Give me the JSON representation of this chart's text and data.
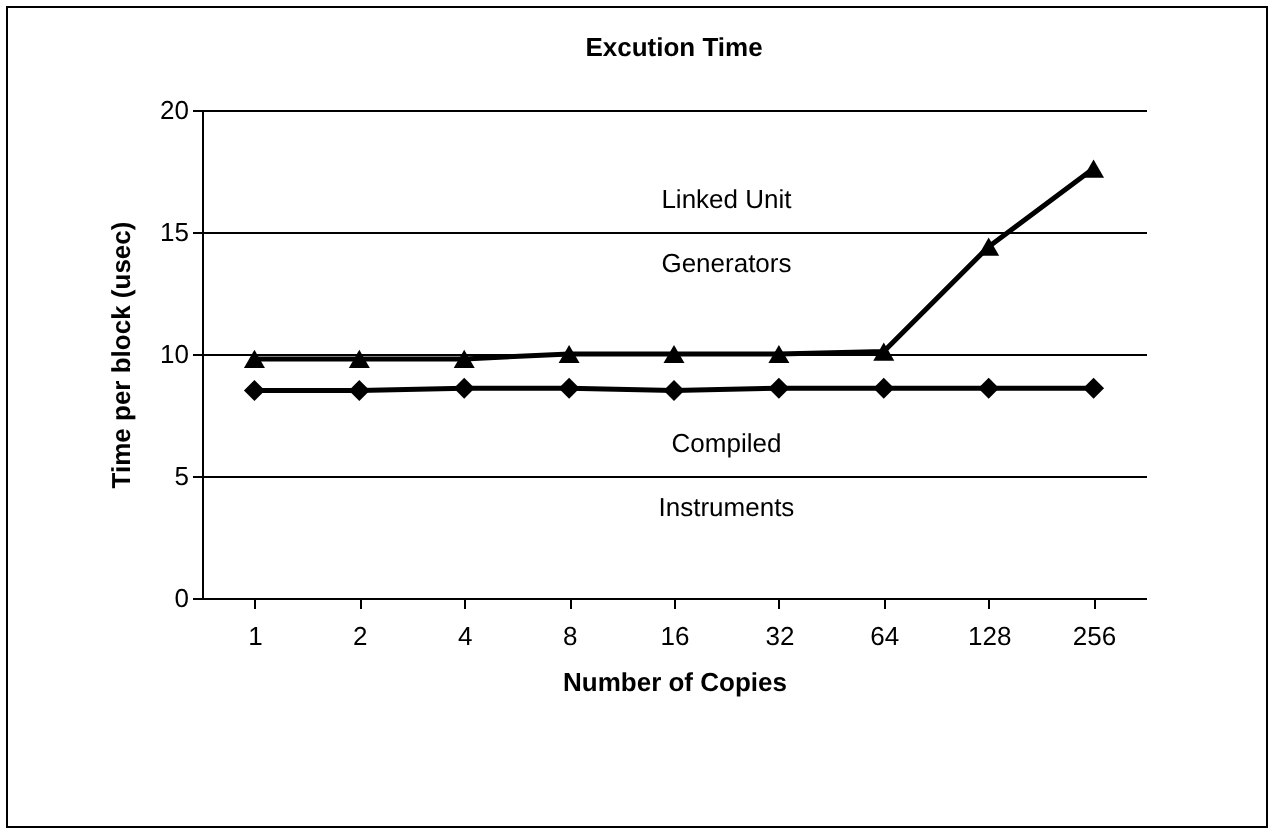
{
  "chart_data": {
    "type": "line",
    "title": "Excution Time",
    "xlabel": "Number of Copies",
    "ylabel": "Time per block (usec)",
    "categories": [
      "1",
      "2",
      "4",
      "8",
      "16",
      "32",
      "64",
      "128",
      "256"
    ],
    "series": [
      {
        "name": "Linked Unit Generators",
        "color": "#000000",
        "marker": "triangle",
        "values": [
          9.8,
          9.8,
          9.8,
          10,
          10,
          10,
          10.1,
          14.4,
          17.6
        ]
      },
      {
        "name": "Compiled Instruments",
        "color": "#000000",
        "marker": "diamond",
        "values": [
          8.5,
          8.5,
          8.6,
          8.6,
          8.5,
          8.6,
          8.6,
          8.6,
          8.6
        ]
      }
    ],
    "ylim": [
      0,
      20
    ],
    "yticks": [
      0,
      5,
      10,
      15,
      20
    ],
    "grid": "y",
    "line_style": "solid"
  }
}
